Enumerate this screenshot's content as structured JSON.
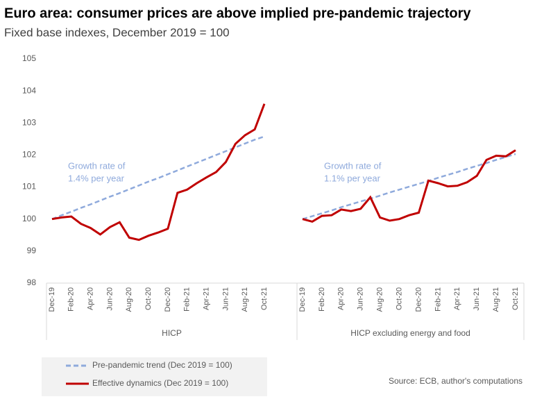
{
  "chart_data": {
    "type": "line",
    "title": "Euro area: consumer prices are above implied pre-pandemic trajectory",
    "subtitle": "Fixed base indexes, December  2019 = 100",
    "source": "Source: ECB, author's computations",
    "categories": [
      "Dec-19",
      null,
      "Feb-20",
      null,
      "Apr-20",
      null,
      "Jun-20",
      null,
      "Aug-20",
      null,
      "Oct-20",
      null,
      "Dec-20",
      null,
      "Feb-21",
      null,
      "Apr-21",
      null,
      "Jun-21",
      null,
      "Aug-21",
      null,
      "Oct-21"
    ],
    "ylim": [
      98,
      105
    ],
    "yticks": [
      98,
      99,
      100,
      101,
      102,
      103,
      104,
      105
    ],
    "grid": false,
    "series": [
      {
        "name": "Pre-pandemic trend (Dec 2019 = 100)",
        "color": "#8faadc",
        "dashed": true
      },
      {
        "name": "Effective dynamics (Dec 2019 = 100)",
        "color": "#c00000",
        "dashed": false
      }
    ],
    "panels": [
      {
        "label": "HICP",
        "annotation": [
          "Growth rate of",
          "1.4% per year"
        ],
        "values": [
          [
            100,
            100.12,
            100.23,
            100.35,
            100.46,
            100.58,
            100.7,
            100.81,
            100.93,
            101.05,
            101.17,
            101.28,
            101.4,
            101.52,
            101.64,
            101.76,
            101.88,
            102,
            102.12,
            102.24,
            102.36,
            102.48,
            102.58
          ],
          [
            100,
            100.05,
            100.08,
            99.85,
            99.72,
            99.52,
            99.75,
            99.9,
            99.42,
            99.35,
            99.48,
            99.58,
            99.7,
            100.82,
            100.92,
            101.12,
            101.3,
            101.47,
            101.78,
            102.35,
            102.62,
            102.8,
            103.6
          ]
        ]
      },
      {
        "label": "HICP excluding energy and food",
        "annotation": [
          "Growth rate of",
          "1.1% per year"
        ],
        "values": [
          [
            100,
            100.09,
            100.18,
            100.27,
            100.37,
            100.46,
            100.55,
            100.64,
            100.73,
            100.83,
            100.92,
            101.01,
            101.1,
            101.19,
            101.29,
            101.38,
            101.47,
            101.57,
            101.66,
            101.75,
            101.85,
            101.94,
            102.03
          ],
          [
            100,
            99.92,
            100.1,
            100.12,
            100.3,
            100.25,
            100.32,
            100.68,
            100.05,
            99.95,
            100,
            100.12,
            100.2,
            101.2,
            101.12,
            101.02,
            101.04,
            101.15,
            101.35,
            101.85,
            101.98,
            101.96,
            102.15
          ]
        ]
      }
    ]
  }
}
